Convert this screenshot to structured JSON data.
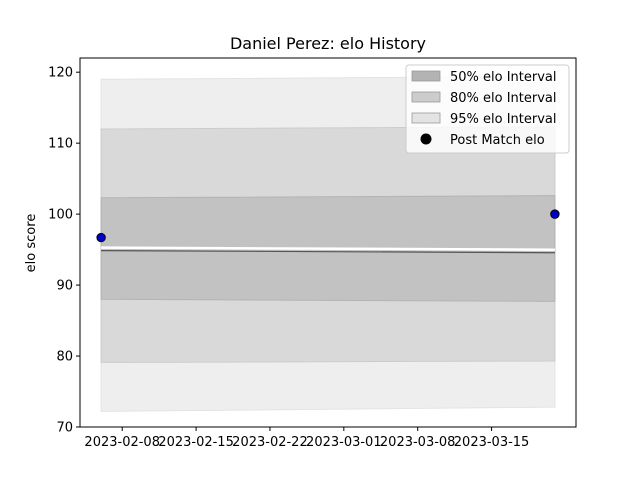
{
  "chart_data": {
    "type": "area",
    "title": "Daniel Perez: elo History",
    "xlabel": "",
    "ylabel": "elo score",
    "xlim": [
      "2023-02-04",
      "2023-03-23"
    ],
    "ylim": [
      70,
      122
    ],
    "x_tick_labels": [
      "2023-02-08",
      "2023-02-15",
      "2023-02-22",
      "2023-03-01",
      "2023-03-08",
      "2023-03-15"
    ],
    "y_tick_labels": [
      "70",
      "80",
      "90",
      "100",
      "110",
      "120"
    ],
    "grid": false,
    "legend_position": "top-right",
    "x": [
      "2023-02-06",
      "2023-03-21"
    ],
    "series": [
      {
        "name": "50% elo Interval",
        "lower": [
          88.0,
          87.7
        ],
        "upper": [
          102.3,
          102.6
        ],
        "color": "#b3b3b3"
      },
      {
        "name": "80% elo Interval",
        "lower": [
          79.1,
          79.3
        ],
        "upper": [
          112.0,
          112.3
        ],
        "color": "#cccccc"
      },
      {
        "name": "95% elo Interval",
        "lower": [
          72.2,
          72.8
        ],
        "upper": [
          119.0,
          119.4
        ],
        "color": "#e3e3e3"
      },
      {
        "name": "Post Match elo",
        "points": [
          {
            "x": "2023-02-06",
            "y": 96.7
          },
          {
            "x": "2023-03-21",
            "y": 100.0
          }
        ],
        "color": "#0000cc"
      }
    ],
    "mean_line": {
      "y": [
        95.0,
        94.7
      ]
    }
  }
}
